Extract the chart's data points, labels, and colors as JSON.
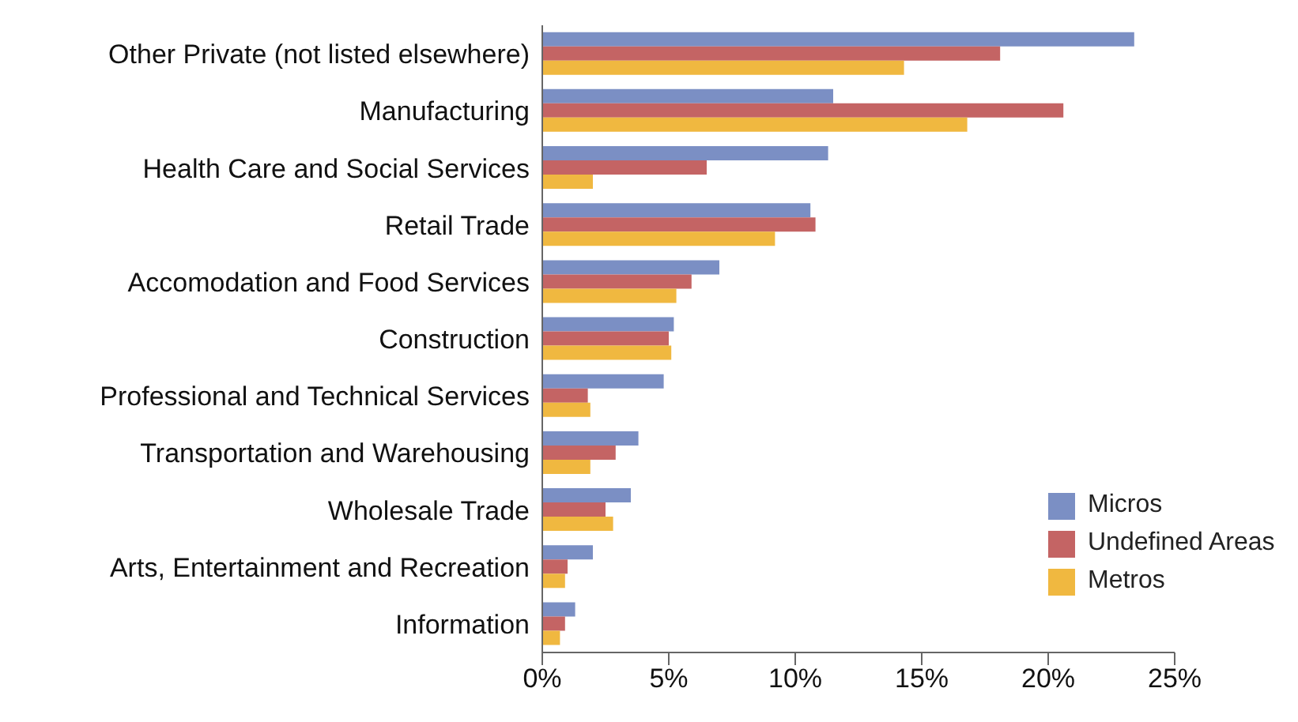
{
  "chart_data": {
    "type": "bar",
    "orientation": "horizontal",
    "categories": [
      "Other Private (not listed elsewhere)",
      "Manufacturing",
      "Health Care and Social Services",
      "Retail Trade",
      "Accomodation and Food Services",
      "Construction",
      "Professional and Technical Services",
      "Transportation and Warehousing",
      "Wholesale Trade",
      "Arts, Entertainment and Recreation",
      "Information"
    ],
    "series": [
      {
        "name": "Micros",
        "color": "#7b8fc4",
        "values": [
          23.4,
          11.5,
          11.3,
          10.6,
          7.0,
          5.2,
          4.8,
          3.8,
          3.5,
          2.0,
          1.3
        ]
      },
      {
        "name": "Undefined Areas",
        "color": "#c46464",
        "values": [
          18.1,
          20.6,
          6.5,
          10.8,
          5.9,
          5.0,
          1.8,
          2.9,
          2.5,
          1.0,
          0.9
        ]
      },
      {
        "name": "Metros",
        "color": "#f0b840",
        "values": [
          14.3,
          16.8,
          2.0,
          9.2,
          5.3,
          5.1,
          1.9,
          1.9,
          2.8,
          0.9,
          0.7
        ]
      }
    ],
    "xlim": [
      0,
      25
    ],
    "xticks": [
      {
        "value": 0,
        "label": "0%"
      },
      {
        "value": 5,
        "label": "5%"
      },
      {
        "value": 10,
        "label": "10%"
      },
      {
        "value": 15,
        "label": "15%"
      },
      {
        "value": 20,
        "label": "20%"
      },
      {
        "value": 25,
        "label": "25%"
      }
    ],
    "grid": false,
    "legend": "bottom right"
  }
}
